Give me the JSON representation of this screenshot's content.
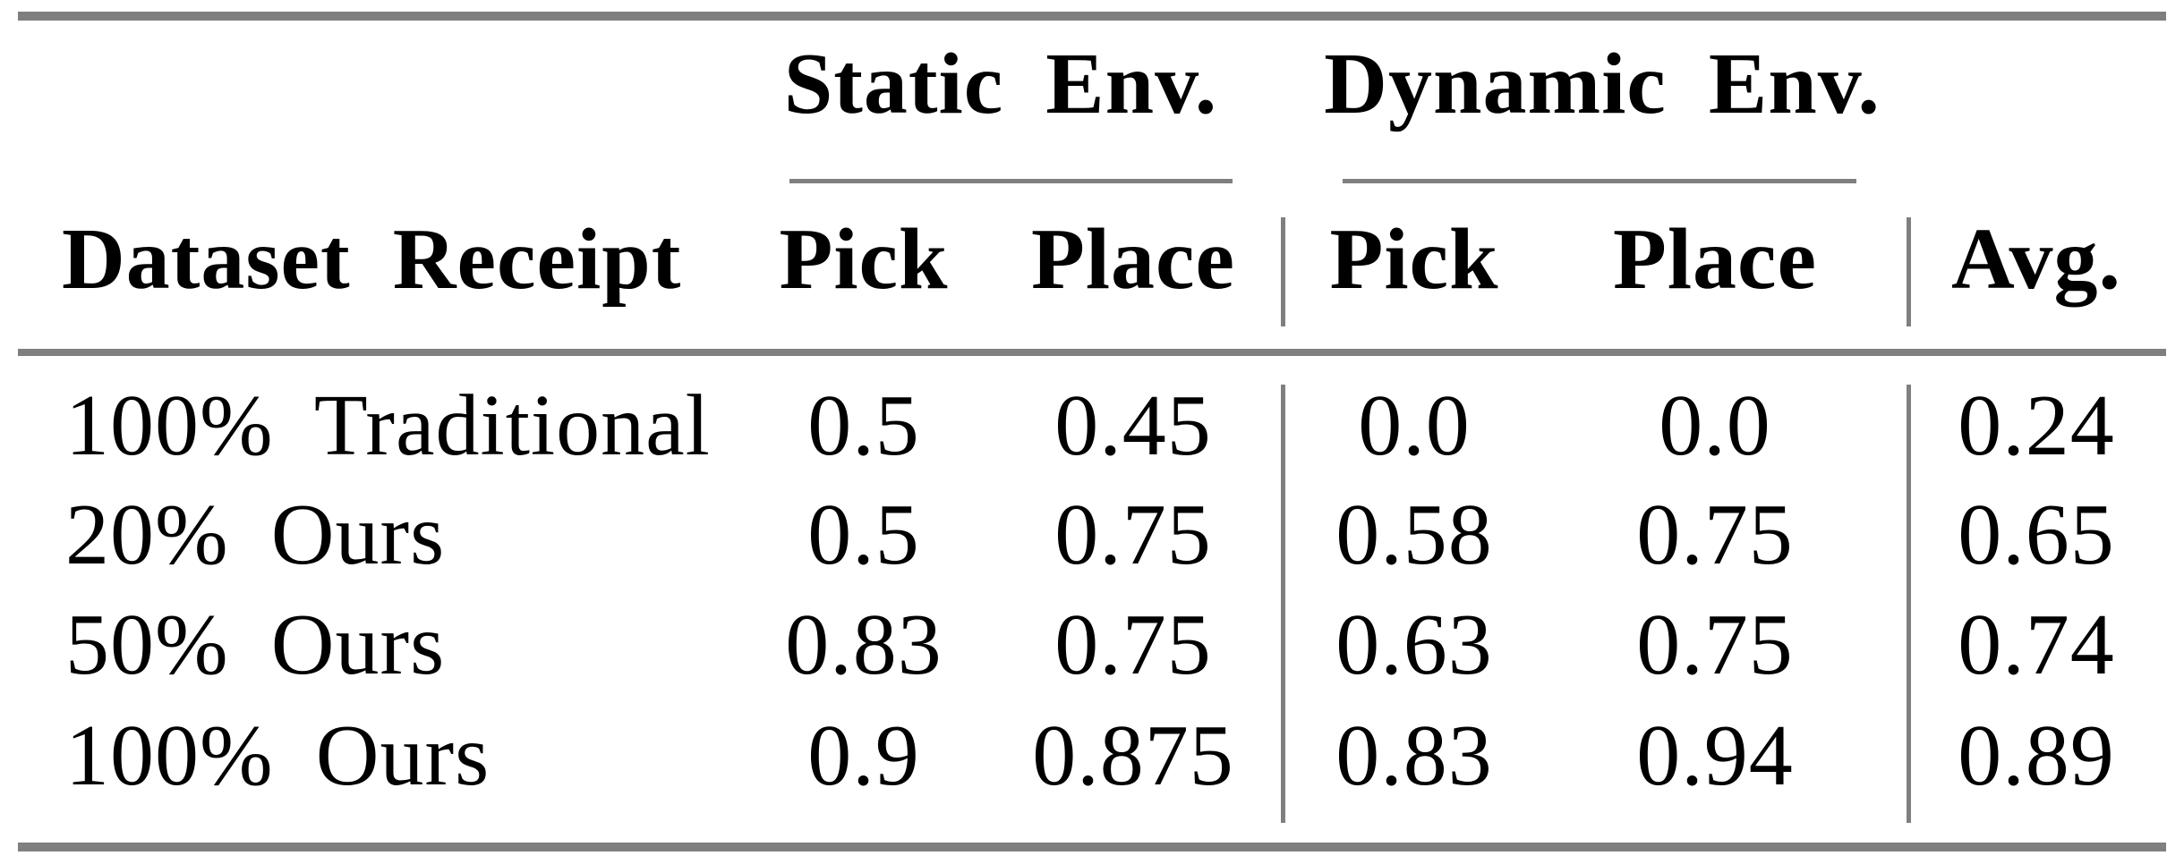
{
  "table": {
    "groups": [
      {
        "label": "Static Env."
      },
      {
        "label": "Dynamic Env."
      }
    ],
    "header": {
      "row_label": "Dataset Receipt",
      "columns": [
        "Pick",
        "Place",
        "Pick",
        "Place",
        "Avg."
      ]
    },
    "rows": [
      {
        "label": "100% Traditional",
        "values": [
          "0.5",
          "0.45",
          "0.0",
          "0.0",
          "0.24"
        ]
      },
      {
        "label": "20% Ours",
        "values": [
          "0.5",
          "0.75",
          "0.58",
          "0.75",
          "0.65"
        ]
      },
      {
        "label": "50% Ours",
        "values": [
          "0.83",
          "0.75",
          "0.63",
          "0.75",
          "0.74"
        ]
      },
      {
        "label": "100% Ours",
        "values": [
          "0.9",
          "0.875",
          "0.83",
          "0.94",
          "0.89"
        ]
      }
    ],
    "colors": {
      "rule": "#7f7f7f",
      "text": "#000000",
      "background": "#ffffff"
    }
  }
}
